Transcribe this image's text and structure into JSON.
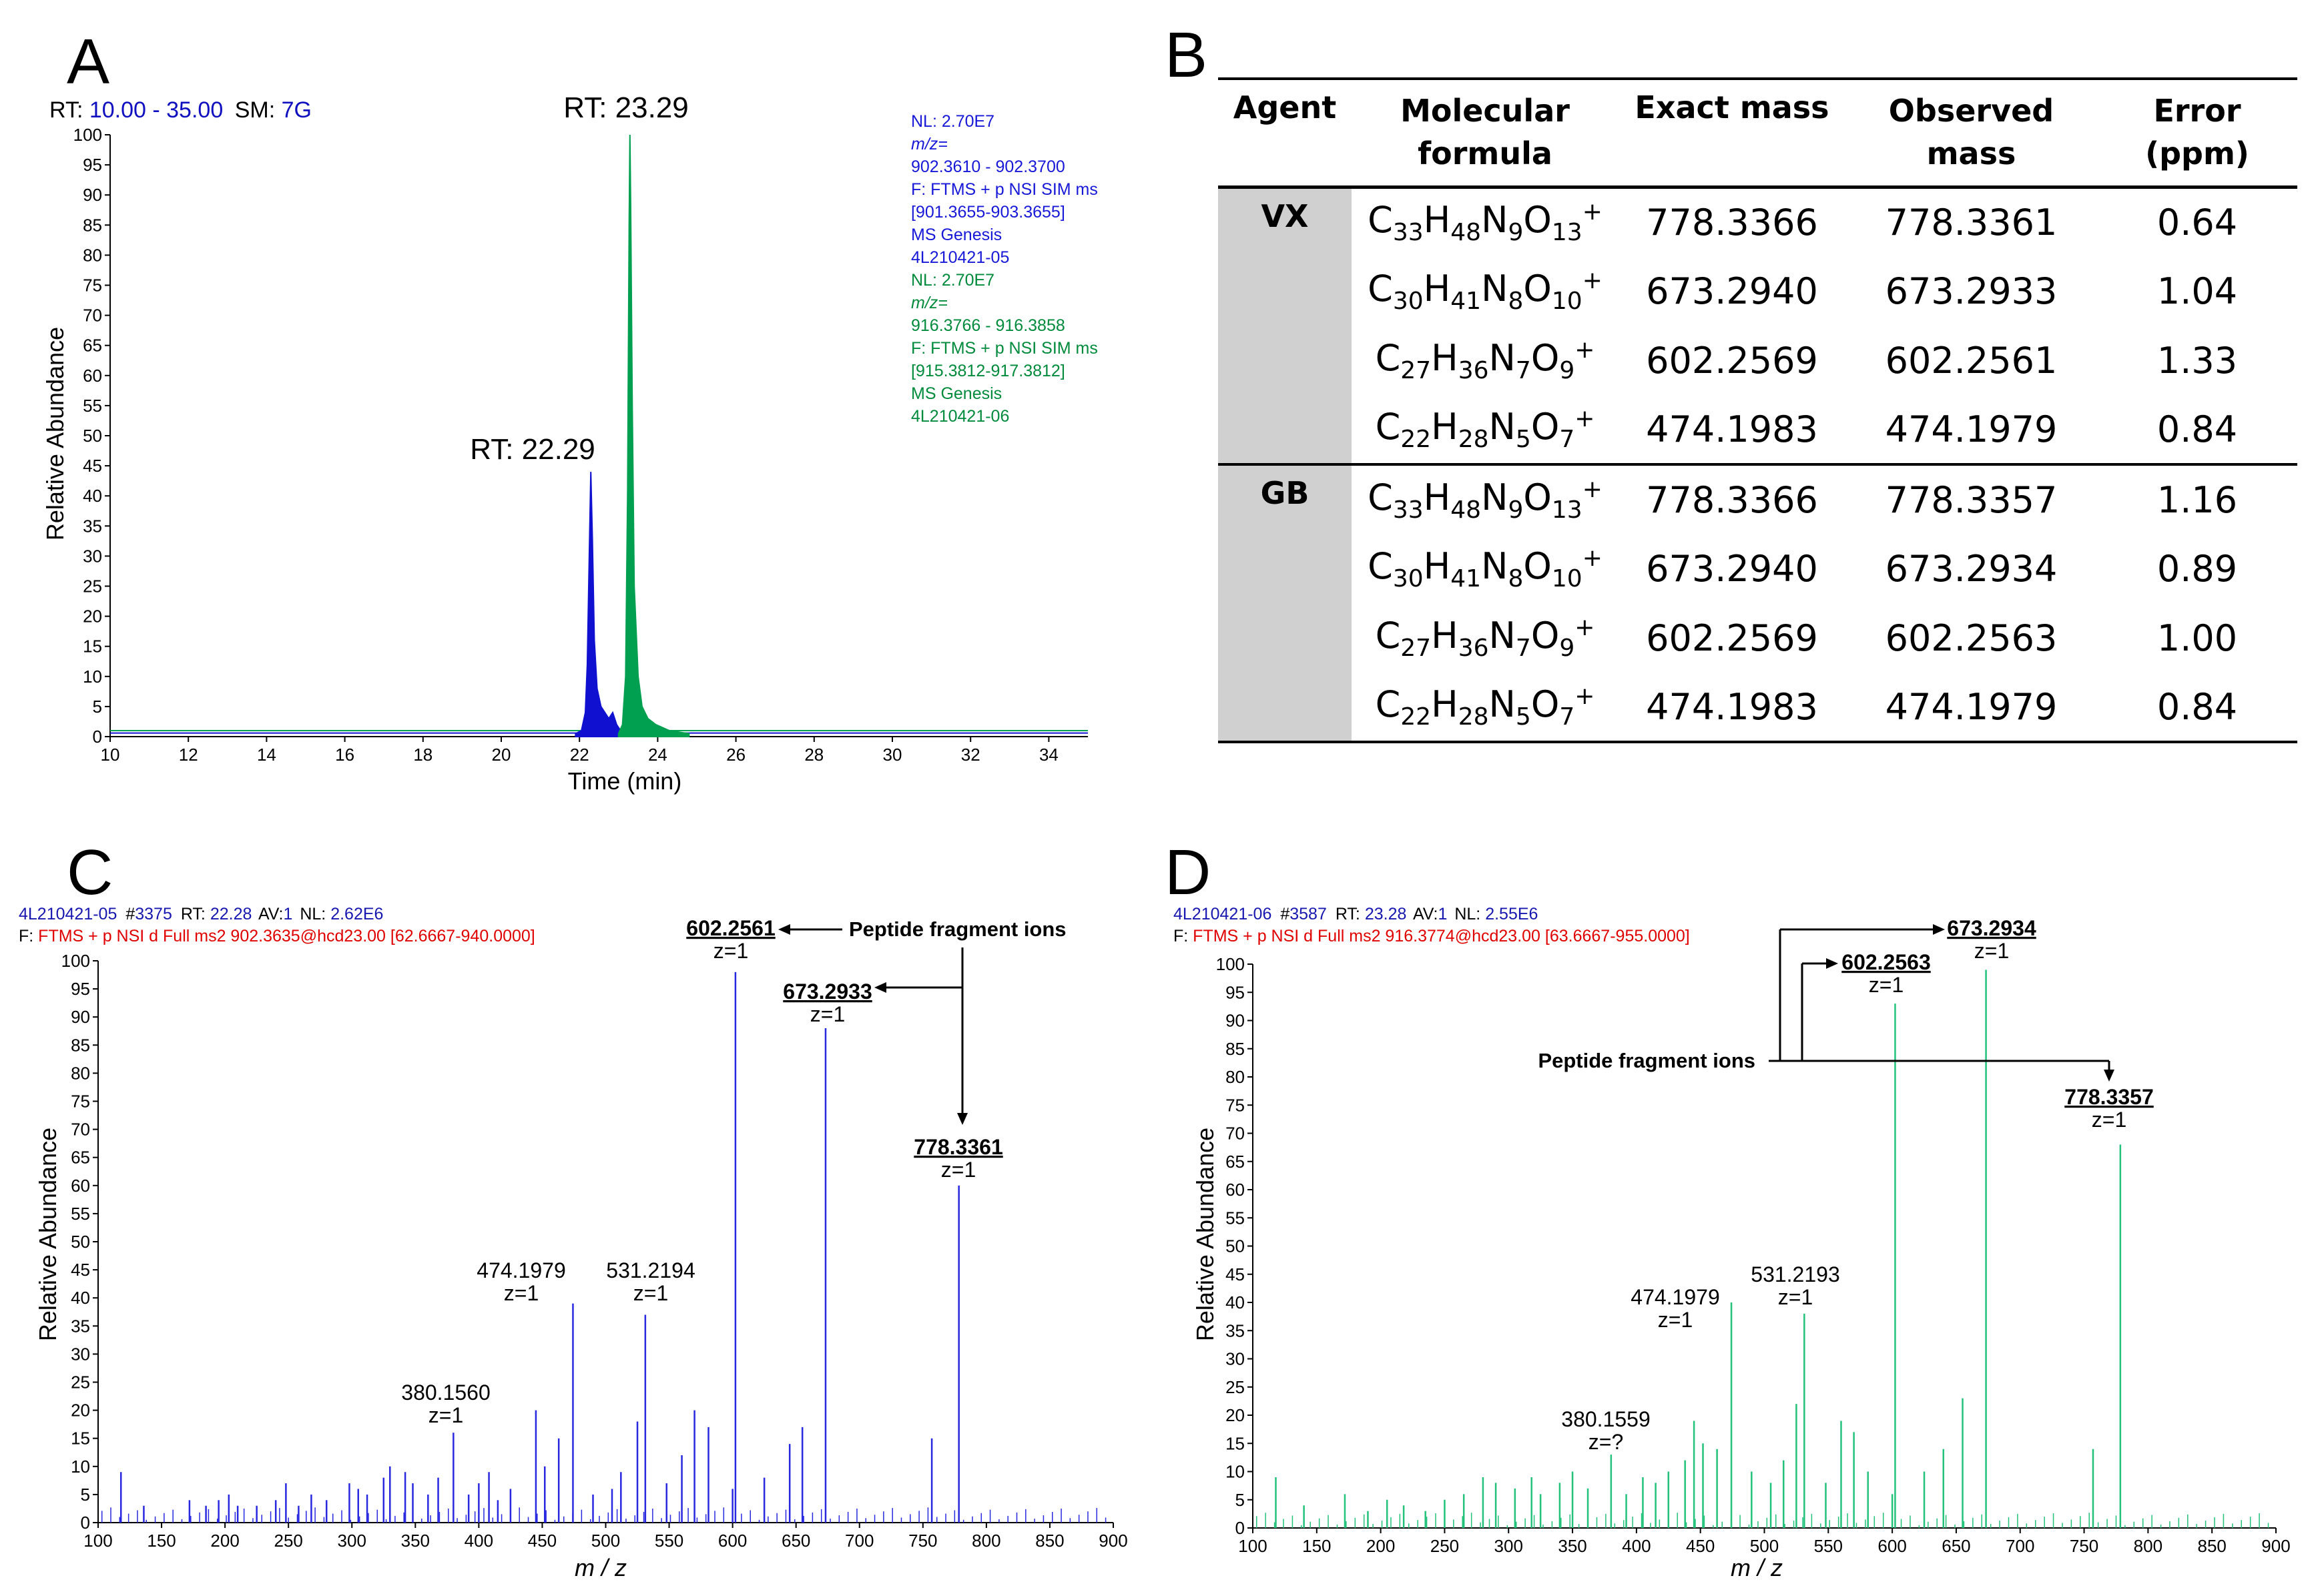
{
  "panels": {
    "A": {
      "letter": "A"
    },
    "B": {
      "letter": "B"
    },
    "C": {
      "letter": "C"
    },
    "D": {
      "letter": "D"
    }
  },
  "chart_data": [
    {
      "id": "A",
      "type": "line",
      "header_rt_label": "RT:",
      "header_rt_range": "10.00  -  35.00",
      "header_sm_label": "SM:",
      "header_sm_value": "7G",
      "xlabel": "Time (min)",
      "ylabel": "Relative Abundance",
      "xlim": [
        10,
        35
      ],
      "ylim": [
        0,
        100
      ],
      "xticks": [
        10,
        12,
        14,
        16,
        18,
        20,
        22,
        24,
        26,
        28,
        30,
        32,
        34
      ],
      "yticks": [
        0,
        5,
        10,
        15,
        20,
        25,
        30,
        35,
        40,
        45,
        50,
        55,
        60,
        65,
        70,
        75,
        80,
        85,
        90,
        95,
        100
      ],
      "series": [
        {
          "name": "4L210421-05",
          "color": "#1010d0",
          "peak_rt": 22.29,
          "peak_height": 44,
          "x": [
            21.9,
            22.05,
            22.15,
            22.2,
            22.25,
            22.29,
            22.33,
            22.38,
            22.45,
            22.55,
            22.65,
            22.75,
            22.85,
            22.95,
            23.05,
            23.15
          ],
          "y": [
            0.5,
            1,
            4,
            12,
            30,
            44,
            33,
            16,
            8,
            5,
            4,
            3,
            4,
            2,
            1,
            0.5
          ]
        },
        {
          "name": "4L210421-06",
          "color": "#00a050",
          "peak_rt": 23.29,
          "peak_height": 100,
          "x": [
            23.0,
            23.1,
            23.18,
            23.23,
            23.27,
            23.29,
            23.31,
            23.35,
            23.4,
            23.5,
            23.6,
            23.75,
            23.95,
            24.3,
            24.8
          ],
          "y": [
            0.5,
            2,
            10,
            40,
            85,
            100,
            88,
            55,
            25,
            10,
            5,
            3,
            2,
            1,
            0.5
          ]
        }
      ],
      "peak_labels": [
        "RT: 22.29",
        "RT: 23.29"
      ],
      "info_blue": [
        "NL: 2.70E7",
        "m/z=",
        "902.3610 - 902.3700",
        "F: FTMS + p NSI SIM ms",
        "[901.3655-903.3655]",
        "MS  Genesis",
        "4L210421-05"
      ],
      "info_green": [
        "NL: 2.70E7",
        "m/z=",
        "916.3766 - 916.3858",
        "F: FTMS + p NSI SIM  ms",
        "[915.3812-917.3812]",
        "MS  Genesis",
        "4L210421-06"
      ]
    },
    {
      "id": "B",
      "type": "table",
      "headers": [
        [
          "Agent"
        ],
        [
          "Molecular",
          "formula"
        ],
        [
          "Exact mass"
        ],
        [
          "Observed",
          "mass"
        ],
        [
          "Error",
          "(ppm)"
        ]
      ],
      "groups": [
        {
          "agent": "VX",
          "rows": [
            {
              "c": "33",
              "h": "48",
              "n": "9",
              "o": "13",
              "exact": "778.3366",
              "observed": "778.3361",
              "error": "0.64"
            },
            {
              "c": "30",
              "h": "41",
              "n": "8",
              "o": "10",
              "exact": "673.2940",
              "observed": "673.2933",
              "error": "1.04"
            },
            {
              "c": "27",
              "h": "36",
              "n": "7",
              "o": "9",
              "exact": "602.2569",
              "observed": "602.2561",
              "error": "1.33"
            },
            {
              "c": "22",
              "h": "28",
              "n": "5",
              "o": "7",
              "exact": "474.1983",
              "observed": "474.1979",
              "error": "0.84"
            }
          ]
        },
        {
          "agent": "GB",
          "rows": [
            {
              "c": "33",
              "h": "48",
              "n": "9",
              "o": "13",
              "exact": "778.3366",
              "observed": "778.3357",
              "error": "1.16"
            },
            {
              "c": "30",
              "h": "41",
              "n": "8",
              "o": "10",
              "exact": "673.2940",
              "observed": "673.2934",
              "error": "0.89"
            },
            {
              "c": "27",
              "h": "36",
              "n": "7",
              "o": "9",
              "exact": "602.2569",
              "observed": "602.2563",
              "error": "1.00"
            },
            {
              "c": "22",
              "h": "28",
              "n": "5",
              "o": "7",
              "exact": "474.1983",
              "observed": "474.1979",
              "error": "0.84"
            }
          ]
        }
      ]
    },
    {
      "id": "C",
      "type": "bar",
      "color": "#2828e0",
      "header_line1": {
        "file": "4L210421-05",
        "scan_label": "#",
        "scan": "3375",
        "rt_label": "RT:",
        "rt": "22.28",
        "av_label": "AV:",
        "av": "1",
        "nl_label": "NL:",
        "nl": "2.62E6"
      },
      "header_line2": {
        "prefix": "F:",
        "text": "FTMS + p NSI d Full ms2 902.3635@hcd23.00 [62.6667-940.0000]"
      },
      "xlabel": "m / z",
      "ylabel": "Relative Abundance",
      "xlim": [
        100,
        900
      ],
      "ylim": [
        0,
        100
      ],
      "xticks": [
        100,
        150,
        200,
        250,
        300,
        350,
        400,
        450,
        500,
        550,
        600,
        650,
        700,
        750,
        800,
        850,
        900
      ],
      "yticks": [
        0,
        5,
        10,
        15,
        20,
        25,
        30,
        35,
        40,
        45,
        50,
        55,
        60,
        65,
        70,
        75,
        80,
        85,
        90,
        95,
        100
      ],
      "peaks_mz": [
        118,
        136,
        172,
        185,
        195,
        203,
        210,
        225,
        240,
        248,
        258,
        268,
        280,
        298,
        305,
        312,
        325,
        330,
        342,
        348,
        360,
        368,
        380,
        392,
        400,
        408,
        415,
        425,
        445,
        452,
        463,
        474.1979,
        490,
        505,
        512,
        525,
        531.2194,
        548,
        560,
        570,
        581,
        600,
        602.2561,
        625,
        645,
        655,
        673.2933,
        757,
        778.3361
      ],
      "peaks_int": [
        9,
        3,
        4,
        3,
        4,
        5,
        3,
        3,
        4,
        7,
        3,
        5,
        4,
        7,
        6,
        5,
        8,
        10,
        9,
        7,
        5,
        8,
        16,
        5,
        7,
        9,
        4,
        6,
        20,
        10,
        15,
        39,
        5,
        6,
        9,
        18,
        37,
        7,
        12,
        20,
        17,
        6,
        98,
        8,
        14,
        17,
        88,
        15,
        60
      ],
      "peak_labels": [
        {
          "mz": "380.1560",
          "z": "z=1",
          "bold": false
        },
        {
          "mz": "474.1979",
          "z": "z=1",
          "bold": false
        },
        {
          "mz": "531.2194",
          "z": "z=1",
          "bold": false
        },
        {
          "mz": "602.2561",
          "z": "z=1",
          "bold": true
        },
        {
          "mz": "673.2933",
          "z": "z=1",
          "bold": true
        },
        {
          "mz": "778.3361",
          "z": "z=1",
          "bold": true
        }
      ],
      "annotation": "Peptide fragment ions"
    },
    {
      "id": "D",
      "type": "bar",
      "color": "#22c27a",
      "header_line1": {
        "file": "4L210421-06",
        "scan_label": "#",
        "scan": "3587",
        "rt_label": "RT:",
        "rt": "23.28",
        "av_label": "AV:",
        "av": "1",
        "nl_label": "NL:",
        "nl": "2.55E6"
      },
      "header_line2": {
        "prefix": "F:",
        "text": "FTMS + p NSI d Full ms2 916.3774@hcd23.00 [63.6667-955.0000]"
      },
      "xlabel": "m / z",
      "ylabel": "Relative Abundance",
      "xlim": [
        100,
        900
      ],
      "ylim": [
        0,
        100
      ],
      "xticks": [
        100,
        150,
        200,
        250,
        300,
        350,
        400,
        450,
        500,
        550,
        600,
        650,
        700,
        750,
        800,
        850,
        900
      ],
      "yticks": [
        0,
        5,
        10,
        15,
        20,
        25,
        30,
        35,
        40,
        45,
        50,
        55,
        60,
        65,
        70,
        75,
        80,
        85,
        90,
        95,
        100
      ],
      "peaks_mz": [
        118,
        140,
        172,
        190,
        205,
        218,
        235,
        250,
        265,
        280,
        290,
        305,
        318,
        325,
        340,
        350,
        362,
        380.1559,
        392,
        405,
        415,
        425,
        438,
        445,
        452,
        463,
        474.1979,
        490,
        505,
        515,
        525,
        531.2193,
        548,
        560,
        570,
        581,
        600,
        602.2563,
        625,
        640,
        655,
        673.2934,
        757,
        778.3357
      ],
      "peaks_int": [
        9,
        4,
        6,
        3,
        5,
        4,
        3,
        5,
        6,
        9,
        8,
        7,
        9,
        6,
        8,
        10,
        7,
        13,
        6,
        9,
        8,
        10,
        12,
        19,
        15,
        14,
        40,
        10,
        8,
        12,
        22,
        38,
        8,
        19,
        17,
        10,
        6,
        93,
        10,
        14,
        23,
        99,
        14,
        68
      ],
      "peak_labels": [
        {
          "mz": "380.1559",
          "z": "z=?",
          "bold": false
        },
        {
          "mz": "474.1979",
          "z": "z=1",
          "bold": false
        },
        {
          "mz": "531.2193",
          "z": "z=1",
          "bold": false
        },
        {
          "mz": "602.2563",
          "z": "z=1",
          "bold": true
        },
        {
          "mz": "673.2934",
          "z": "z=1",
          "bold": true
        },
        {
          "mz": "778.3357",
          "z": "z=1",
          "bold": true
        }
      ],
      "annotation": "Peptide fragment ions"
    }
  ]
}
